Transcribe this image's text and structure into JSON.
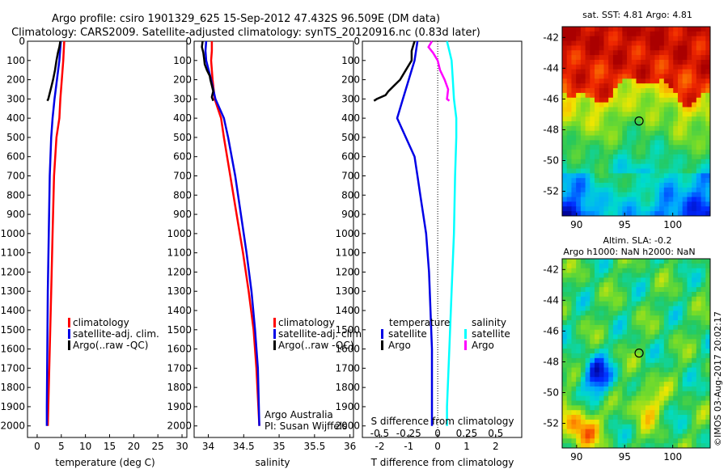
{
  "header": {
    "line1": "Argo profile: csiro 1901329_625 15-Sep-2012 47.432S 96.509E (DM data)",
    "line2": "Climatology: CARS2009. Satellite-adjusted climatology: synTS_20120916.nc (0.83d later)"
  },
  "colors": {
    "red": "#ff0000",
    "blue": "#0000e6",
    "black": "#000000",
    "cyan": "#00ffff",
    "magenta": "#ff00ff"
  },
  "depth_ticks": [
    "0",
    "100",
    "200",
    "300",
    "400",
    "500",
    "600",
    "700",
    "800",
    "900",
    "1000",
    "1100",
    "1200",
    "1300",
    "1400",
    "1500",
    "1600",
    "1700",
    "1800",
    "1900",
    "2000"
  ],
  "temperature_panel": {
    "xlabel": "temperature (deg C)",
    "xticks": [
      "0",
      "5",
      "10",
      "15",
      "20",
      "25",
      "30"
    ],
    "xlim": [
      -2,
      31
    ],
    "legend": [
      "climatology",
      "satellite-adj. clim.",
      "Argo(..raw -QC)"
    ]
  },
  "salinity_panel": {
    "xlabel": "salinity",
    "xticks": [
      "34",
      "34.5",
      "35",
      "35.5",
      "36"
    ],
    "xlim": [
      33.8,
      36.05
    ],
    "legend": [
      "climatology",
      "satellite-adj. clim.",
      "Argo(..raw -QC)"
    ],
    "annotation1": "Argo Australia",
    "annotation2": "PI: Susan Wijffels"
  },
  "difference_panel": {
    "xlabel": "T difference from climatology",
    "top_label": "S difference from climatology",
    "xticks_T": [
      "-2",
      "-1",
      "0",
      "1",
      "2"
    ],
    "xticks_S": [
      "-0.5",
      "-0.25",
      "0",
      "0.25",
      "0.5"
    ],
    "xlim_T": [
      -2.6,
      2.9
    ],
    "legend_left_title": "temperature",
    "legend_right_title": "salinity",
    "legend_left": [
      "satellite",
      "Argo"
    ],
    "legend_right": [
      "satellite",
      "Argo"
    ]
  },
  "sst_map": {
    "title": "sat. SST: 4.81  Argo: 4.81",
    "yticks": [
      "-42",
      "-44",
      "-46",
      "-48",
      "-50",
      "-52"
    ],
    "xticks": [
      "90",
      "95",
      "100"
    ],
    "float_lon": 96.5,
    "float_lat": -47.43
  },
  "sla_map": {
    "title1": "Altim. SLA: -0.2",
    "title2": "Argo h1000: NaN h2000: NaN",
    "yticks": [
      "-42",
      "-44",
      "-46",
      "-48",
      "-50",
      "-52"
    ],
    "xticks": [
      "90",
      "95",
      "100"
    ],
    "float_lon": 96.5,
    "float_lat": -47.43
  },
  "credit": "©IMOS 03-Aug-2017 20:02:17",
  "chart_data": [
    {
      "type": "line",
      "xlabel": "temperature (deg C)",
      "ylabel": "",
      "xlim": [
        -2,
        31
      ],
      "ylim": [
        2060,
        0
      ],
      "series": [
        {
          "name": "climatology",
          "depth": [
            0,
            100,
            200,
            300,
            400,
            500,
            700,
            1000,
            1300,
            1600,
            1900,
            2000
          ],
          "values": [
            5.6,
            5.4,
            5.1,
            4.8,
            4.6,
            4.0,
            3.5,
            3.2,
            2.9,
            2.6,
            2.3,
            2.2
          ]
        },
        {
          "name": "satellite-adj. clim.",
          "depth": [
            0,
            100,
            200,
            300,
            400,
            500,
            700,
            1000,
            1300,
            1600,
            1900,
            2000
          ],
          "values": [
            4.9,
            4.6,
            4.1,
            3.6,
            3.2,
            2.9,
            2.6,
            2.4,
            2.2,
            2.1,
            2.0,
            2.0
          ]
        },
        {
          "name": "Argo(..raw -QC)",
          "depth": [
            0,
            30,
            60,
            100,
            150,
            200,
            240,
            270,
            300,
            310
          ],
          "values": [
            4.8,
            4.6,
            4.3,
            4.0,
            3.7,
            3.3,
            2.9,
            2.6,
            2.3,
            2.1
          ]
        }
      ]
    },
    {
      "type": "line",
      "xlabel": "salinity",
      "ylabel": "",
      "xlim": [
        33.8,
        36.05
      ],
      "ylim": [
        2060,
        0
      ],
      "series": [
        {
          "name": "climatology",
          "depth": [
            0,
            50,
            100,
            200,
            300,
            400,
            500,
            700,
            900,
            1100,
            1300,
            1500,
            1700,
            2000
          ],
          "values": [
            34.05,
            34.05,
            34.04,
            34.06,
            34.09,
            34.18,
            34.22,
            34.31,
            34.4,
            34.49,
            34.57,
            34.64,
            34.68,
            34.72
          ]
        },
        {
          "name": "satellite-adj. clim.",
          "depth": [
            0,
            50,
            100,
            200,
            300,
            400,
            500,
            700,
            900,
            1100,
            1300,
            1500,
            1700,
            2000
          ],
          "values": [
            33.97,
            33.96,
            33.97,
            34.04,
            34.1,
            34.22,
            34.28,
            34.38,
            34.46,
            34.54,
            34.61,
            34.66,
            34.7,
            34.72
          ]
        },
        {
          "name": "Argo(..raw -QC)",
          "depth": [
            0,
            30,
            60,
            90,
            120,
            150,
            180,
            200,
            230,
            260,
            290,
            310
          ],
          "values": [
            33.92,
            33.91,
            33.93,
            33.94,
            33.95,
            33.98,
            34.02,
            34.03,
            34.05,
            34.07,
            34.05,
            34.07
          ]
        }
      ]
    },
    {
      "type": "line",
      "xlabel": "T difference from climatology",
      "ylabel": "",
      "xlim": [
        -2.6,
        2.9
      ],
      "ylim": [
        2060,
        0
      ],
      "series": [
        {
          "name": "temperature satellite",
          "depth": [
            0,
            100,
            200,
            300,
            400,
            500,
            600,
            700,
            800,
            900,
            1000,
            1200,
            1400,
            1600,
            1800,
            2000
          ],
          "values": [
            -0.7,
            -0.8,
            -1.0,
            -1.2,
            -1.4,
            -1.1,
            -0.8,
            -0.7,
            -0.6,
            -0.5,
            -0.4,
            -0.3,
            -0.25,
            -0.2,
            -0.2,
            -0.2
          ]
        },
        {
          "name": "temperature Argo",
          "depth": [
            0,
            50,
            100,
            150,
            200,
            230,
            260,
            280,
            300,
            310
          ],
          "values": [
            -0.8,
            -0.9,
            -0.9,
            -1.1,
            -1.3,
            -1.5,
            -1.7,
            -1.8,
            -2.1,
            -2.2
          ]
        },
        {
          "name": "salinity satellite",
          "depth": [
            0,
            50,
            100,
            200,
            300,
            400,
            500,
            700,
            1000,
            1300,
            1600,
            1900,
            2000
          ],
          "values": [
            0.08,
            0.1,
            0.12,
            0.13,
            0.14,
            0.16,
            0.16,
            0.15,
            0.14,
            0.12,
            0.1,
            0.08,
            0.08
          ]
        },
        {
          "name": "salinity Argo",
          "depth": [
            0,
            30,
            60,
            100,
            150,
            200,
            250,
            300,
            310
          ],
          "values": [
            -0.05,
            -0.08,
            -0.04,
            0.0,
            0.02,
            0.06,
            0.09,
            0.08,
            0.1
          ]
        }
      ]
    }
  ]
}
